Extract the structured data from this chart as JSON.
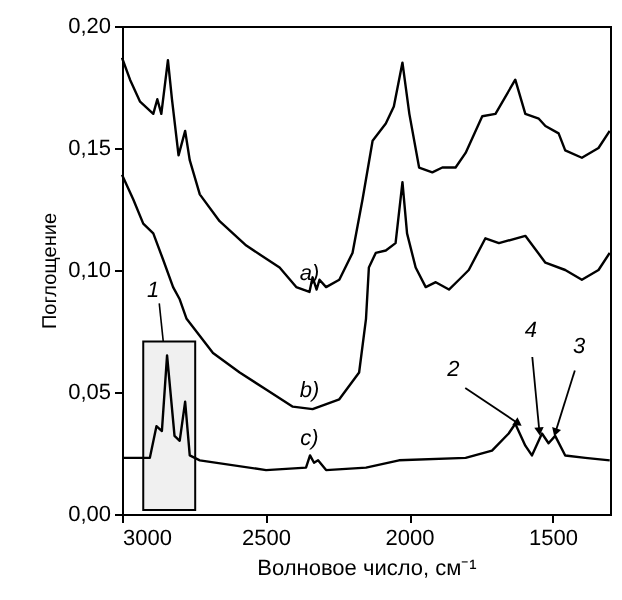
{
  "chart_data": {
    "type": "line",
    "xlabel": "Волновое число, см⁻¹",
    "ylabel": "Поглощение",
    "xlim": [
      3000,
      1300
    ],
    "xticks": [
      3000,
      2500,
      2000,
      1500
    ],
    "ylim": [
      0,
      0.2
    ],
    "yticks": [
      {
        "value": 0,
        "label": "0,00"
      },
      {
        "value": 0.05,
        "label": "0,05"
      },
      {
        "value": 0.1,
        "label": "0,10"
      },
      {
        "value": 0.15,
        "label": "0,15"
      },
      {
        "value": 0.2,
        "label": "0,20"
      }
    ],
    "grid": false,
    "line_style": "solid",
    "marker": "none",
    "series": [
      {
        "name": "a)",
        "color": "#000000",
        "x": [
          3000,
          2972,
          2937,
          2891,
          2877,
          2863,
          2840,
          2826,
          2803,
          2780,
          2764,
          2729,
          2660,
          2567,
          2451,
          2393,
          2347,
          2336,
          2322,
          2312,
          2289,
          2243,
          2197,
          2162,
          2127,
          2081,
          2053,
          2023,
          1999,
          1965,
          1919,
          1884,
          1838,
          1803,
          1745,
          1699,
          1630,
          1595,
          1548,
          1525,
          1479,
          1456,
          1398,
          1340,
          1301
        ],
        "values": [
          0.187,
          0.178,
          0.169,
          0.164,
          0.17,
          0.164,
          0.186,
          0.17,
          0.147,
          0.157,
          0.145,
          0.131,
          0.12,
          0.11,
          0.101,
          0.093,
          0.091,
          0.097,
          0.092,
          0.096,
          0.093,
          0.096,
          0.107,
          0.129,
          0.153,
          0.16,
          0.167,
          0.185,
          0.164,
          0.142,
          0.14,
          0.142,
          0.142,
          0.148,
          0.163,
          0.164,
          0.178,
          0.164,
          0.162,
          0.159,
          0.156,
          0.149,
          0.146,
          0.15,
          0.157
        ]
      },
      {
        "name": "b)",
        "color": "#000000",
        "x": [
          3000,
          2961,
          2926,
          2891,
          2856,
          2822,
          2799,
          2775,
          2683,
          2590,
          2498,
          2405,
          2336,
          2243,
          2174,
          2150,
          2140,
          2116,
          2081,
          2047,
          2023,
          2007,
          1977,
          1942,
          1907,
          1861,
          1826,
          1792,
          1734,
          1687,
          1595,
          1525,
          1456,
          1398,
          1340,
          1301
        ],
        "values": [
          0.139,
          0.129,
          0.119,
          0.115,
          0.104,
          0.093,
          0.088,
          0.08,
          0.066,
          0.058,
          0.051,
          0.044,
          0.043,
          0.047,
          0.058,
          0.08,
          0.101,
          0.107,
          0.108,
          0.111,
          0.136,
          0.115,
          0.101,
          0.093,
          0.095,
          0.092,
          0.096,
          0.1,
          0.113,
          0.111,
          0.114,
          0.103,
          0.1,
          0.096,
          0.1,
          0.107
        ]
      },
      {
        "name": "c)",
        "color": "#000000",
        "x": [
          3000,
          2903,
          2880,
          2861,
          2843,
          2817,
          2799,
          2780,
          2764,
          2729,
          2498,
          2359,
          2345,
          2331,
          2317,
          2289,
          2150,
          2035,
          1803,
          1711,
          1653,
          1630,
          1595,
          1572,
          1537,
          1514,
          1491,
          1456,
          1386,
          1301
        ],
        "values": [
          0.023,
          0.023,
          0.036,
          0.034,
          0.065,
          0.032,
          0.03,
          0.046,
          0.024,
          0.022,
          0.018,
          0.019,
          0.024,
          0.021,
          0.022,
          0.018,
          0.019,
          0.022,
          0.023,
          0.026,
          0.033,
          0.037,
          0.028,
          0.024,
          0.033,
          0.029,
          0.032,
          0.024,
          0.023,
          0.022
        ]
      }
    ],
    "bands": [
      {
        "axis": "x",
        "from": 2926,
        "to": 2745,
        "label": "1",
        "color": "#000000"
      }
    ],
    "annotations": [
      {
        "text": "2",
        "x": 1637,
        "y": 0.0385
      },
      {
        "text": "4",
        "x": 1548,
        "y": 0.0363
      },
      {
        "text": "3",
        "x": 1484,
        "y": 0.0358
      }
    ]
  }
}
